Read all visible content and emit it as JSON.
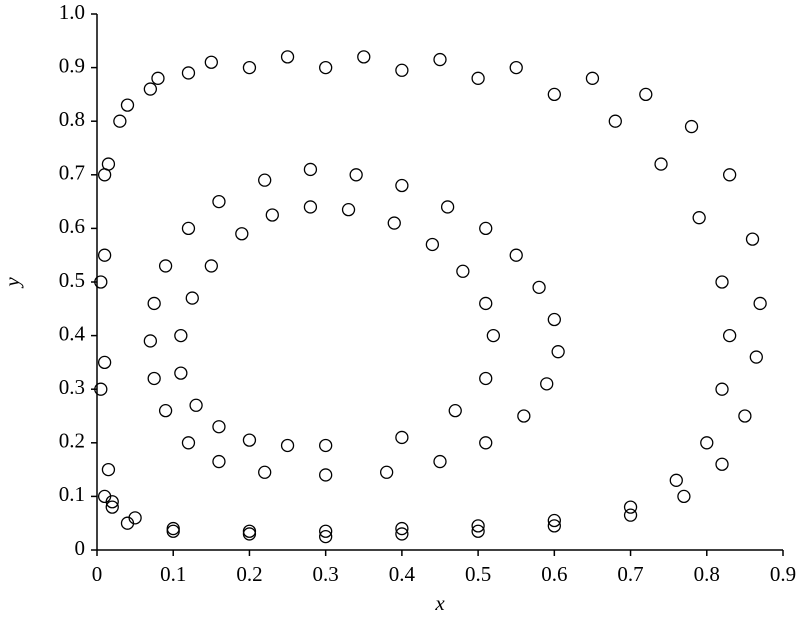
{
  "chart_data": {
    "type": "scatter",
    "xlabel": "x",
    "ylabel": "y",
    "x": [
      0.3,
      0.4,
      0.47,
      0.51,
      0.52,
      0.51,
      0.48,
      0.44,
      0.39,
      0.33,
      0.28,
      0.23,
      0.19,
      0.15,
      0.125,
      0.11,
      0.11,
      0.13,
      0.16,
      0.2,
      0.25,
      0.3,
      0.38,
      0.45,
      0.51,
      0.56,
      0.59,
      0.605,
      0.6,
      0.58,
      0.55,
      0.51,
      0.46,
      0.4,
      0.34,
      0.28,
      0.22,
      0.16,
      0.12,
      0.09,
      0.075,
      0.07,
      0.075,
      0.09,
      0.12,
      0.16,
      0.22,
      0.01,
      0.005,
      0.005,
      0.01,
      0.03,
      0.07,
      0.12,
      0.2,
      0.3,
      0.4,
      0.5,
      0.6,
      0.68,
      0.74,
      0.79,
      0.82,
      0.83,
      0.82,
      0.8,
      0.76,
      0.7,
      0.6,
      0.5,
      0.4,
      0.3,
      0.2,
      0.1,
      0.05,
      0.02,
      0.015,
      0.01,
      0.01,
      0.015,
      0.04,
      0.08,
      0.15,
      0.25,
      0.35,
      0.45,
      0.55,
      0.65,
      0.72,
      0.78,
      0.83,
      0.86,
      0.87,
      0.865,
      0.85,
      0.82,
      0.77,
      0.7,
      0.6,
      0.5,
      0.4,
      0.3,
      0.2,
      0.1,
      0.04,
      0.02
    ],
    "y": [
      0.195,
      0.21,
      0.26,
      0.32,
      0.4,
      0.46,
      0.52,
      0.57,
      0.61,
      0.635,
      0.64,
      0.625,
      0.59,
      0.53,
      0.47,
      0.4,
      0.33,
      0.27,
      0.23,
      0.205,
      0.195,
      0.14,
      0.145,
      0.165,
      0.2,
      0.25,
      0.31,
      0.37,
      0.43,
      0.49,
      0.55,
      0.6,
      0.64,
      0.68,
      0.7,
      0.71,
      0.69,
      0.65,
      0.6,
      0.53,
      0.46,
      0.39,
      0.32,
      0.26,
      0.2,
      0.165,
      0.145,
      0.1,
      0.3,
      0.5,
      0.7,
      0.8,
      0.86,
      0.89,
      0.9,
      0.9,
      0.895,
      0.88,
      0.85,
      0.8,
      0.72,
      0.62,
      0.5,
      0.4,
      0.3,
      0.2,
      0.13,
      0.08,
      0.055,
      0.045,
      0.04,
      0.035,
      0.035,
      0.04,
      0.06,
      0.09,
      0.15,
      0.35,
      0.55,
      0.72,
      0.83,
      0.88,
      0.91,
      0.92,
      0.92,
      0.915,
      0.9,
      0.88,
      0.85,
      0.79,
      0.7,
      0.58,
      0.46,
      0.36,
      0.25,
      0.16,
      0.1,
      0.065,
      0.045,
      0.035,
      0.03,
      0.025,
      0.03,
      0.035,
      0.05,
      0.08
    ],
    "color": "#000000",
    "xlim": [
      0,
      0.9
    ],
    "xticks": [
      0,
      0.1,
      0.2,
      0.3,
      0.4,
      0.5,
      0.6,
      0.7,
      0.8,
      0.9
    ],
    "ylim": [
      0,
      1
    ],
    "yticks": [
      0,
      0.1,
      0.2,
      0.3,
      0.4,
      0.5,
      0.6,
      0.7,
      0.8,
      0.9,
      {
        "value": 1,
        "label": "1.0"
      }
    ],
    "grid": false
  }
}
